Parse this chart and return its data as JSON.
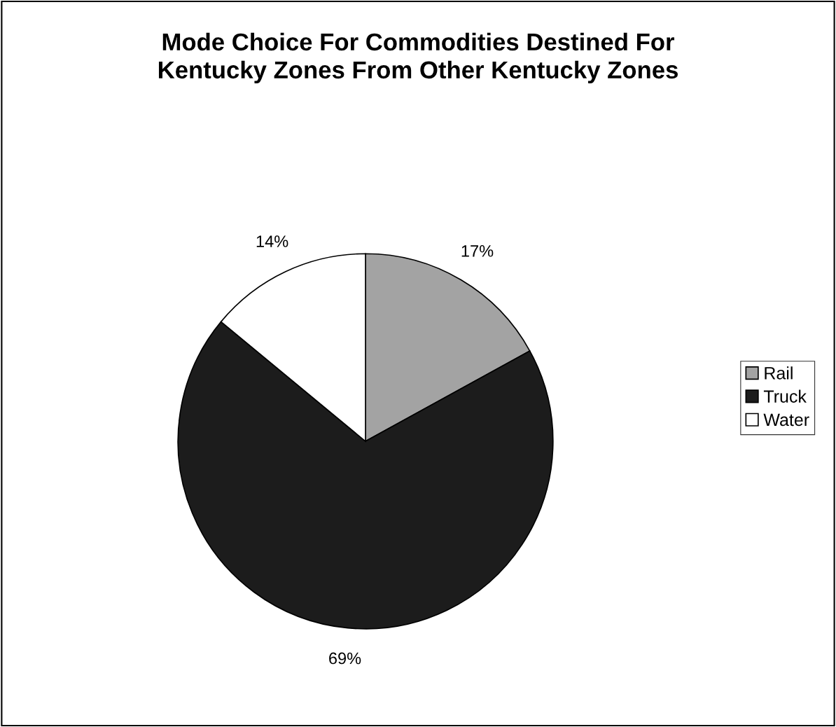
{
  "chart_data": {
    "type": "pie",
    "title": "Mode Choice For Commodities Destined For\nKentucky Zones From Other Kentucky Zones",
    "categories": [
      "Rail",
      "Truck",
      "Water"
    ],
    "values": [
      17,
      69,
      14
    ],
    "colors": [
      "#a3a3a3",
      "#1c1c1c",
      "#ffffff"
    ],
    "value_labels": [
      "17%",
      "69%",
      "14%"
    ],
    "legend": "right"
  }
}
